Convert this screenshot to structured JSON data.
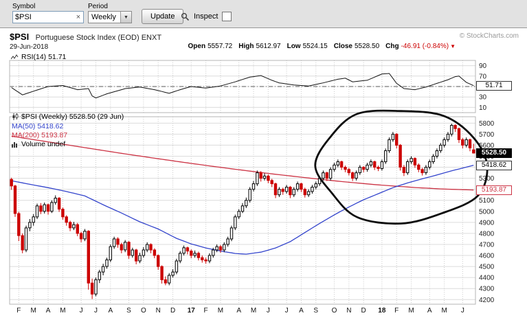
{
  "toolbar": {
    "symbol_label": "Symbol",
    "symbol_value": "$PSI",
    "clear_glyph": "×",
    "period_label": "Period",
    "period_value": "Weekly",
    "select_arrow": "▼",
    "update_label": "Update",
    "inspect_label": "Inspect"
  },
  "header": {
    "symbol": "$PSI",
    "description": "Portuguese Stock Index (EOD) ENXT",
    "copyright": "© StockCharts.com",
    "date": "29-Jun-2018",
    "quote": {
      "open_label": "Open",
      "open_value": "5557.72",
      "high_label": "High",
      "high_value": "5612.97",
      "low_label": "Low",
      "low_value": "5524.15",
      "close_label": "Close",
      "close_value": "5528.50",
      "chg_label": "Chg",
      "chg_value": "-46.91 (-0.84%)",
      "chg_arrow": "▼"
    }
  },
  "rsi_panel": {
    "legend": "RSI(14) 51.71",
    "badge": "51.71"
  },
  "price_panel": {
    "legend_main": "$PSI (Weekly) 5528.50 (29 Jun)",
    "legend_ma50": "MA(50) 5418.62",
    "legend_ma200": "MA(200) 5193.87",
    "legend_volume": "Volume undef",
    "badge_close": "5528.50",
    "badge_ma50": "5418.62",
    "badge_ma200": "5193.87"
  },
  "chart_data": {
    "type": "candlestick",
    "title": "$PSI (Weekly) Portuguese Stock Index (EOD) ENXT",
    "x_ticks": [
      {
        "label": "F",
        "week": 2
      },
      {
        "label": "M",
        "week": 6
      },
      {
        "label": "A",
        "week": 10
      },
      {
        "label": "M",
        "week": 14
      },
      {
        "label": "J",
        "week": 19
      },
      {
        "label": "J",
        "week": 23
      },
      {
        "label": "A",
        "week": 27
      },
      {
        "label": "S",
        "week": 32
      },
      {
        "label": "O",
        "week": 36
      },
      {
        "label": "N",
        "week": 40
      },
      {
        "label": "D",
        "week": 44
      },
      {
        "label": "17",
        "week": 49,
        "bold": true
      },
      {
        "label": "F",
        "week": 53
      },
      {
        "label": "M",
        "week": 57
      },
      {
        "label": "A",
        "week": 62
      },
      {
        "label": "M",
        "week": 66
      },
      {
        "label": "J",
        "week": 70
      },
      {
        "label": "J",
        "week": 75
      },
      {
        "label": "A",
        "week": 79
      },
      {
        "label": "S",
        "week": 83
      },
      {
        "label": "O",
        "week": 88
      },
      {
        "label": "N",
        "week": 92
      },
      {
        "label": "D",
        "week": 96
      },
      {
        "label": "18",
        "week": 101,
        "bold": true
      },
      {
        "label": "F",
        "week": 105
      },
      {
        "label": "M",
        "week": 109
      },
      {
        "label": "A",
        "week": 114
      },
      {
        "label": "M",
        "week": 118
      },
      {
        "label": "J",
        "week": 123
      }
    ],
    "price": {
      "ylim": [
        4158,
        5858
      ],
      "grid": {
        "min": 4200,
        "max": 5800,
        "step": 100
      },
      "last": 5528.5,
      "up_color": "#000000",
      "down_color": "#cc0000",
      "candles": [
        [
          5290,
          5305,
          5195,
          5230
        ],
        [
          5230,
          5240,
          4950,
          4980
        ],
        [
          4980,
          4995,
          4730,
          4780
        ],
        [
          4780,
          4800,
          4620,
          4650
        ],
        [
          4650,
          4870,
          4630,
          4850
        ],
        [
          4850,
          4930,
          4820,
          4900
        ],
        [
          4900,
          4975,
          4870,
          4950
        ],
        [
          4950,
          5070,
          4930,
          5050
        ],
        [
          5050,
          5075,
          4975,
          5000
        ],
        [
          5000,
          5080,
          4980,
          5060
        ],
        [
          5060,
          5070,
          4970,
          5000
        ],
        [
          5000,
          5100,
          4985,
          5080
        ],
        [
          5080,
          5145,
          5060,
          5120
        ],
        [
          5120,
          5130,
          4995,
          5020
        ],
        [
          5020,
          5035,
          4925,
          4950
        ],
        [
          4950,
          4965,
          4870,
          4900
        ],
        [
          4900,
          4915,
          4820,
          4850
        ],
        [
          4850,
          4905,
          4830,
          4880
        ],
        [
          4880,
          4895,
          4775,
          4800
        ],
        [
          4800,
          4815,
          4720,
          4750
        ],
        [
          4750,
          4840,
          4730,
          4820
        ],
        [
          4820,
          4830,
          4290,
          4350
        ],
        [
          4350,
          4390,
          4205,
          4250
        ],
        [
          4250,
          4400,
          4230,
          4380
        ],
        [
          4380,
          4470,
          4350,
          4450
        ],
        [
          4450,
          4525,
          4420,
          4500
        ],
        [
          4500,
          4580,
          4480,
          4560
        ],
        [
          4560,
          4700,
          4540,
          4680
        ],
        [
          4680,
          4770,
          4660,
          4750
        ],
        [
          4750,
          4765,
          4670,
          4700
        ],
        [
          4700,
          4715,
          4620,
          4650
        ],
        [
          4650,
          4740,
          4630,
          4720
        ],
        [
          4720,
          4730,
          4570,
          4600
        ],
        [
          4600,
          4670,
          4580,
          4650
        ],
        [
          4650,
          4660,
          4520,
          4550
        ],
        [
          4550,
          4625,
          4530,
          4600
        ],
        [
          4600,
          4675,
          4580,
          4650
        ],
        [
          4650,
          4720,
          4630,
          4700
        ],
        [
          4700,
          4710,
          4620,
          4650
        ],
        [
          4650,
          4665,
          4575,
          4600
        ],
        [
          4600,
          4610,
          4470,
          4500
        ],
        [
          4500,
          4510,
          4345,
          4380
        ],
        [
          4380,
          4410,
          4330,
          4350
        ],
        [
          4350,
          4440,
          4330,
          4420
        ],
        [
          4420,
          4475,
          4400,
          4450
        ],
        [
          4450,
          4570,
          4430,
          4550
        ],
        [
          4550,
          4640,
          4530,
          4620
        ],
        [
          4620,
          4690,
          4600,
          4670
        ],
        [
          4670,
          4680,
          4610,
          4640
        ],
        [
          4640,
          4655,
          4575,
          4600
        ],
        [
          4600,
          4645,
          4580,
          4620
        ],
        [
          4620,
          4635,
          4555,
          4580
        ],
        [
          4580,
          4600,
          4535,
          4560
        ],
        [
          4560,
          4580,
          4525,
          4550
        ],
        [
          4550,
          4620,
          4530,
          4600
        ],
        [
          4600,
          4670,
          4580,
          4650
        ],
        [
          4650,
          4700,
          4630,
          4680
        ],
        [
          4680,
          4695,
          4625,
          4650
        ],
        [
          4650,
          4720,
          4630,
          4700
        ],
        [
          4700,
          4770,
          4680,
          4750
        ],
        [
          4750,
          4870,
          4730,
          4850
        ],
        [
          4850,
          4970,
          4830,
          4950
        ],
        [
          4950,
          5020,
          4930,
          5000
        ],
        [
          5000,
          5075,
          4985,
          5050
        ],
        [
          5050,
          5125,
          5030,
          5100
        ],
        [
          5100,
          5220,
          5080,
          5200
        ],
        [
          5200,
          5275,
          5180,
          5250
        ],
        [
          5250,
          5370,
          5230,
          5350
        ],
        [
          5350,
          5365,
          5270,
          5300
        ],
        [
          5300,
          5345,
          5280,
          5320
        ],
        [
          5320,
          5335,
          5255,
          5280
        ],
        [
          5280,
          5295,
          5220,
          5250
        ],
        [
          5250,
          5260,
          5120,
          5150
        ],
        [
          5150,
          5220,
          5130,
          5200
        ],
        [
          5200,
          5215,
          5150,
          5180
        ],
        [
          5180,
          5240,
          5160,
          5220
        ],
        [
          5220,
          5230,
          5120,
          5150
        ],
        [
          5150,
          5220,
          5130,
          5200
        ],
        [
          5200,
          5270,
          5180,
          5250
        ],
        [
          5250,
          5260,
          5175,
          5200
        ],
        [
          5200,
          5215,
          5125,
          5150
        ],
        [
          5150,
          5200,
          5130,
          5180
        ],
        [
          5180,
          5240,
          5160,
          5220
        ],
        [
          5220,
          5270,
          5200,
          5250
        ],
        [
          5250,
          5320,
          5230,
          5300
        ],
        [
          5300,
          5370,
          5280,
          5350
        ],
        [
          5350,
          5360,
          5275,
          5300
        ],
        [
          5300,
          5400,
          5280,
          5380
        ],
        [
          5380,
          5440,
          5360,
          5420
        ],
        [
          5420,
          5470,
          5400,
          5450
        ],
        [
          5450,
          5460,
          5375,
          5400
        ],
        [
          5400,
          5415,
          5355,
          5380
        ],
        [
          5380,
          5395,
          5325,
          5350
        ],
        [
          5350,
          5360,
          5275,
          5300
        ],
        [
          5300,
          5370,
          5280,
          5350
        ],
        [
          5350,
          5420,
          5330,
          5400
        ],
        [
          5400,
          5410,
          5355,
          5380
        ],
        [
          5380,
          5440,
          5360,
          5420
        ],
        [
          5420,
          5470,
          5400,
          5450
        ],
        [
          5450,
          5460,
          5375,
          5400
        ],
        [
          5400,
          5415,
          5365,
          5388
        ],
        [
          5388,
          5470,
          5370,
          5450
        ],
        [
          5450,
          5570,
          5430,
          5550
        ],
        [
          5550,
          5670,
          5530,
          5650
        ],
        [
          5650,
          5720,
          5630,
          5700
        ],
        [
          5700,
          5710,
          5570,
          5600
        ],
        [
          5600,
          5610,
          5370,
          5400
        ],
        [
          5400,
          5420,
          5320,
          5350
        ],
        [
          5350,
          5470,
          5330,
          5450
        ],
        [
          5450,
          5500,
          5430,
          5480
        ],
        [
          5480,
          5490,
          5395,
          5420
        ],
        [
          5420,
          5435,
          5355,
          5380
        ],
        [
          5380,
          5395,
          5325,
          5350
        ],
        [
          5350,
          5420,
          5330,
          5400
        ],
        [
          5400,
          5470,
          5380,
          5450
        ],
        [
          5450,
          5520,
          5430,
          5500
        ],
        [
          5500,
          5570,
          5480,
          5550
        ],
        [
          5550,
          5620,
          5530,
          5600
        ],
        [
          5600,
          5670,
          5580,
          5650
        ],
        [
          5650,
          5720,
          5630,
          5700
        ],
        [
          5700,
          5795,
          5680,
          5780
        ],
        [
          5780,
          5790,
          5720,
          5750
        ],
        [
          5750,
          5760,
          5620,
          5650
        ],
        [
          5650,
          5665,
          5570,
          5600
        ],
        [
          5600,
          5670,
          5580,
          5650
        ],
        [
          5650,
          5660,
          5545,
          5575
        ],
        [
          5557.72,
          5612.97,
          5524.15,
          5528.5
        ]
      ]
    },
    "ma50": {
      "name": "MA(50)",
      "last": 5418.62,
      "color": "#3344cc",
      "anchors": [
        [
          0,
          5278
        ],
        [
          5,
          5245
        ],
        [
          10,
          5215
        ],
        [
          15,
          5180
        ],
        [
          20,
          5140
        ],
        [
          25,
          5060
        ],
        [
          30,
          4985
        ],
        [
          35,
          4905
        ],
        [
          40,
          4840
        ],
        [
          45,
          4755
        ],
        [
          49,
          4705
        ],
        [
          53,
          4668
        ],
        [
          57,
          4640
        ],
        [
          61,
          4618
        ],
        [
          64,
          4612
        ],
        [
          68,
          4630
        ],
        [
          72,
          4668
        ],
        [
          76,
          4725
        ],
        [
          80,
          4808
        ],
        [
          84,
          4890
        ],
        [
          88,
          4968
        ],
        [
          92,
          5040
        ],
        [
          96,
          5105
        ],
        [
          100,
          5160
        ],
        [
          104,
          5215
        ],
        [
          108,
          5258
        ],
        [
          112,
          5295
        ],
        [
          116,
          5330
        ],
        [
          120,
          5368
        ],
        [
          123,
          5392
        ],
        [
          126,
          5418.62
        ]
      ]
    },
    "ma200": {
      "name": "MA(200)",
      "last": 5193.87,
      "color": "#cc3344",
      "anchors": [
        [
          0,
          5682
        ],
        [
          10,
          5630
        ],
        [
          20,
          5578
        ],
        [
          30,
          5526
        ],
        [
          40,
          5477
        ],
        [
          50,
          5430
        ],
        [
          60,
          5386
        ],
        [
          70,
          5344
        ],
        [
          80,
          5306
        ],
        [
          90,
          5270
        ],
        [
          100,
          5240
        ],
        [
          110,
          5216
        ],
        [
          118,
          5202
        ],
        [
          126,
          5193.87
        ]
      ]
    },
    "rsi": {
      "name": "RSI(14)",
      "last": 51.71,
      "ylim": [
        0,
        100
      ],
      "ticks": [
        90,
        70,
        50,
        30,
        10
      ],
      "midline": 50,
      "anchors": [
        [
          0,
          48
        ],
        [
          3,
          34
        ],
        [
          6,
          41
        ],
        [
          10,
          50
        ],
        [
          14,
          52
        ],
        [
          18,
          44
        ],
        [
          21,
          46
        ],
        [
          22,
          32
        ],
        [
          23,
          28
        ],
        [
          26,
          36
        ],
        [
          31,
          46
        ],
        [
          35,
          49
        ],
        [
          39,
          44
        ],
        [
          43,
          37
        ],
        [
          46,
          44
        ],
        [
          49,
          50
        ],
        [
          53,
          47
        ],
        [
          57,
          51
        ],
        [
          61,
          59
        ],
        [
          65,
          68
        ],
        [
          68,
          71
        ],
        [
          71,
          62
        ],
        [
          73,
          57
        ],
        [
          77,
          53
        ],
        [
          81,
          51
        ],
        [
          85,
          57
        ],
        [
          89,
          64
        ],
        [
          91,
          66
        ],
        [
          93,
          59
        ],
        [
          97,
          62
        ],
        [
          101,
          74
        ],
        [
          103,
          75
        ],
        [
          105,
          56
        ],
        [
          107,
          46
        ],
        [
          110,
          44
        ],
        [
          113,
          49
        ],
        [
          116,
          56
        ],
        [
          119,
          63
        ],
        [
          121,
          69
        ],
        [
          122,
          70
        ],
        [
          124,
          58
        ],
        [
          126,
          51.71
        ]
      ]
    },
    "annotation": {
      "shape": "freehand-ellipse",
      "description": "hand-drawn circle highlighting Oct 2017 - Jun 2018 price area",
      "weeks": [
        84,
        129.5
      ],
      "price_range": [
        4900,
        5925
      ],
      "color": "#0d0d0d"
    }
  }
}
